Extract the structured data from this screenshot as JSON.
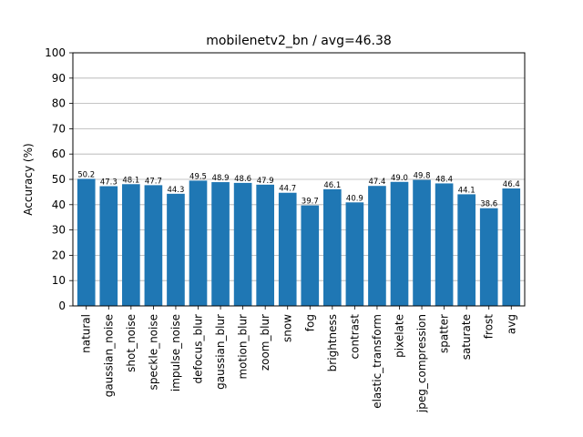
{
  "chart_data": {
    "type": "bar",
    "title": "mobilenetv2_bn / avg=46.38",
    "xlabel": "",
    "ylabel": "Accuracy (%)",
    "ylim": [
      0,
      100
    ],
    "yticks": [
      0,
      10,
      20,
      30,
      40,
      50,
      60,
      70,
      80,
      90,
      100
    ],
    "grid": "horizontal",
    "bar_color": "#1f77b4",
    "categories": [
      "natural",
      "gaussian_noise",
      "shot_noise",
      "speckle_noise",
      "impulse_noise",
      "defocus_blur",
      "gaussian_blur",
      "motion_blur",
      "zoom_blur",
      "snow",
      "fog",
      "brightness",
      "contrast",
      "elastic_transform",
      "pixelate",
      "jpeg_compression",
      "spatter",
      "saturate",
      "frost",
      "avg"
    ],
    "values": [
      50.2,
      47.3,
      48.1,
      47.7,
      44.3,
      49.5,
      48.9,
      48.6,
      47.9,
      44.7,
      39.7,
      46.1,
      40.9,
      47.4,
      49.0,
      49.8,
      48.4,
      44.1,
      38.6,
      46.4
    ],
    "data_labels": [
      "50.2",
      "47.3",
      "48.1",
      "47.7",
      "44.3",
      "49.5",
      "48.9",
      "48.6",
      "47.9",
      "44.7",
      "39.7",
      "46.1",
      "40.9",
      "47.4",
      "49.0",
      "49.8",
      "48.4",
      "44.1",
      "38.6",
      "46.4"
    ]
  }
}
